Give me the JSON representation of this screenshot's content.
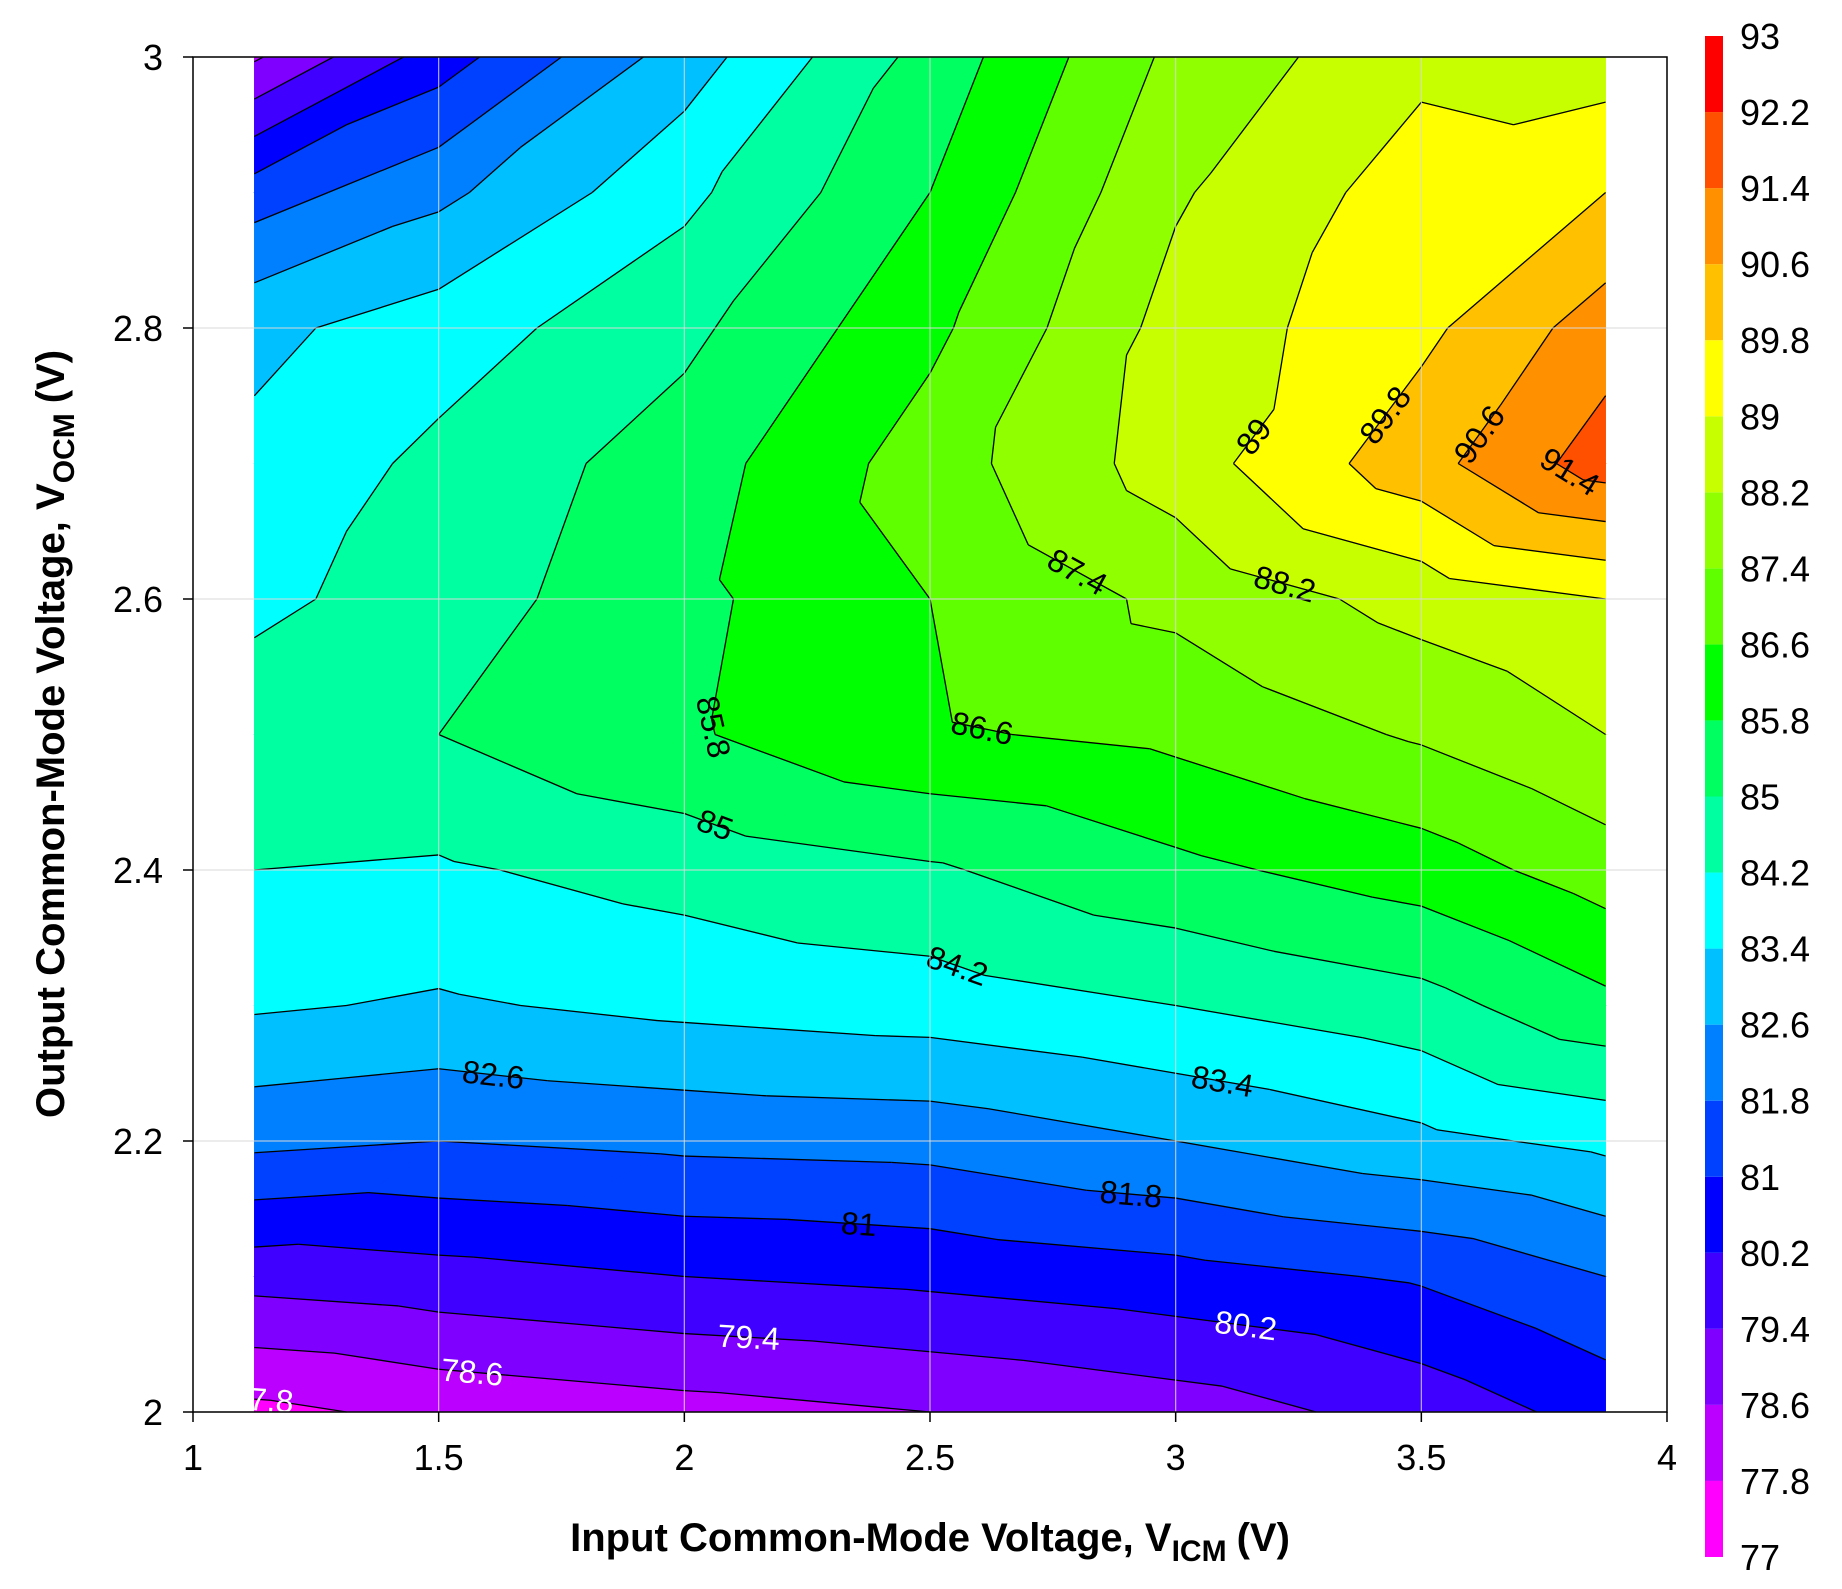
{
  "chart_data": {
    "type": "contour",
    "xlabel": [
      "Input Common-Mode Voltage, V",
      "ICM",
      "(V)"
    ],
    "ylabel": [
      "Output Common-Mode Voltage, V",
      "OCM",
      "(V)"
    ],
    "x": [
      1.125,
      1.5,
      2,
      2.5,
      3,
      3.5,
      3.875
    ],
    "y": [
      2,
      2.1,
      2.2,
      2.3,
      2.4,
      2.5,
      2.6,
      2.7,
      2.8,
      2.9,
      3
    ],
    "z": [
      [
        77.6,
        78.0,
        78.3,
        78.6,
        79.0,
        79.7,
        80.5
      ],
      [
        79.7,
        79.9,
        80.2,
        80.4,
        80.7,
        81.1,
        81.8
      ],
      [
        82.0,
        81.8,
        82.0,
        82.1,
        82.6,
        83.2,
        83.6
      ],
      [
        83.5,
        83.3,
        83.6,
        83.8,
        84.2,
        84.7,
        85.6
      ],
      [
        84.2,
        84.1,
        84.5,
        84.9,
        85.6,
        86.2,
        87.0
      ],
      [
        84.7,
        85.0,
        85.7,
        86.5,
        86.8,
        87.5,
        88.2
      ],
      [
        84.0,
        84.6,
        85.6,
        86.6,
        87.6,
        88.5,
        89.0
      ],
      [
        83.6,
        84.4,
        85.4,
        87.0,
        88.6,
        90.3,
        91.8
      ],
      [
        83.2,
        83.8,
        84.8,
        86.4,
        88.5,
        89.6,
        91.0
      ],
      [
        81.4,
        82.4,
        84.0,
        85.8,
        88.1,
        89.4,
        89.8
      ],
      [
        78.5,
        80.6,
        83.0,
        85.3,
        87.6,
        88.8,
        88.6
      ]
    ],
    "levels": [
      77,
      77.8,
      78.6,
      79.4,
      80.2,
      81,
      81.8,
      82.6,
      83.4,
      84.2,
      85,
      85.8,
      86.6,
      87.4,
      88.2,
      89,
      89.8,
      90.6,
      91.4,
      92.2,
      93
    ],
    "colors": [
      "#ff00ff",
      "#bb00ff",
      "#8000ff",
      "#4000ff",
      "#0000ff",
      "#0040ff",
      "#0080ff",
      "#00c0ff",
      "#00ffff",
      "#00ffa0",
      "#00ff60",
      "#00ff00",
      "#60ff00",
      "#90ff00",
      "#c8ff00",
      "#ffff00",
      "#ffc000",
      "#ff9000",
      "#ff5000",
      "#ff0000"
    ],
    "xlim": [
      1,
      4
    ],
    "xticks": [
      1,
      1.5,
      2,
      2.5,
      3,
      3.5,
      4
    ],
    "ylim": [
      2,
      3
    ],
    "yticks": [
      2,
      2.2,
      2.4,
      2.6,
      2.8,
      3
    ],
    "grid": true,
    "contour_labels": true
  }
}
